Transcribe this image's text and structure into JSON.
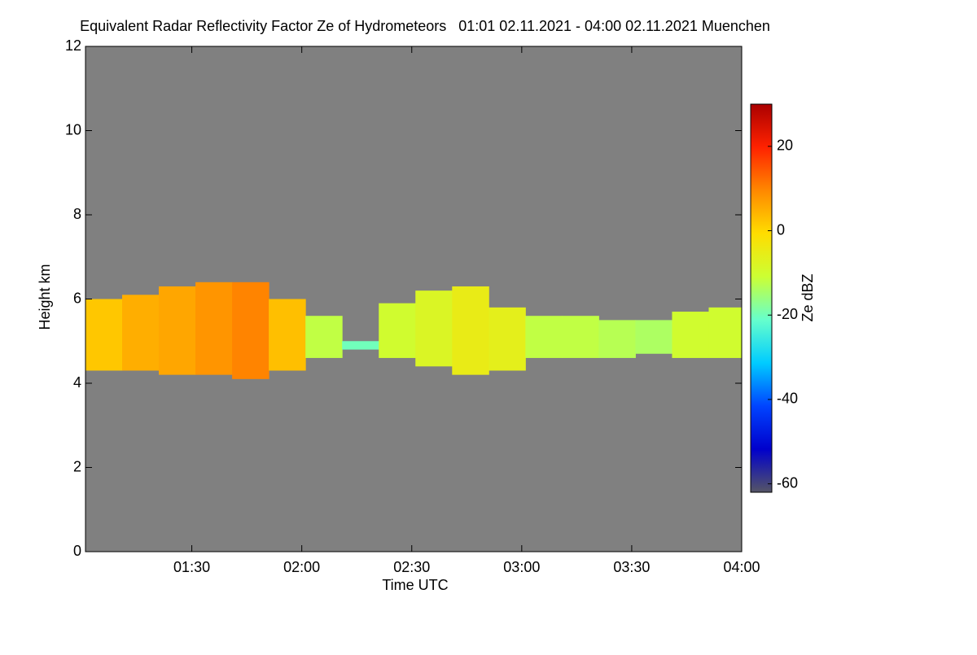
{
  "chart_data": {
    "type": "heatmap",
    "title": "Equivalent Radar Reflectivity Factor Ze of Hydrometeors   01:01 02.11.2021 - 04:00 02.11.2021 Muenchen",
    "xlabel": "Time UTC",
    "ylabel": "Height km",
    "colorbar_label": "Ze dBZ",
    "xlim": [
      61,
      240
    ],
    "xticks": [
      {
        "value": 90,
        "label": "01:30"
      },
      {
        "value": 120,
        "label": "02:00"
      },
      {
        "value": 150,
        "label": "02:30"
      },
      {
        "value": 180,
        "label": "03:00"
      },
      {
        "value": 210,
        "label": "03:30"
      },
      {
        "value": 240,
        "label": "04:00"
      }
    ],
    "ylim": [
      0,
      12
    ],
    "yticks": [
      0,
      2,
      4,
      6,
      8,
      10,
      12
    ],
    "zlim": [
      -62,
      30
    ],
    "zticks": [
      -60,
      -40,
      -20,
      0,
      20
    ],
    "colormap": [
      "#555566",
      "#0000cc",
      "#0044ff",
      "#00ccff",
      "#66ffcc",
      "#ccff33",
      "#ffdd00",
      "#ff8800",
      "#ff2200",
      "#aa0000"
    ],
    "background": "#808080",
    "x": [
      66,
      76,
      86,
      96,
      106,
      116,
      126,
      136,
      146,
      156,
      166,
      176,
      186,
      196,
      206,
      216,
      226,
      236
    ],
    "x_width": 10,
    "top": [
      6.0,
      6.1,
      6.3,
      6.4,
      6.4,
      6.0,
      5.6,
      5.0,
      5.9,
      6.2,
      6.3,
      5.8,
      5.6,
      5.6,
      5.5,
      5.5,
      5.7,
      5.8
    ],
    "base": [
      4.3,
      4.3,
      4.2,
      4.2,
      4.1,
      4.3,
      4.6,
      4.8,
      4.6,
      4.4,
      4.2,
      4.3,
      4.6,
      4.6,
      4.6,
      4.7,
      4.6,
      4.6
    ],
    "values": [
      2,
      5,
      6,
      8,
      10,
      3,
      -12,
      -20,
      -10,
      -8,
      -5,
      -6,
      -12,
      -12,
      -13,
      -14,
      -10,
      -10
    ]
  }
}
